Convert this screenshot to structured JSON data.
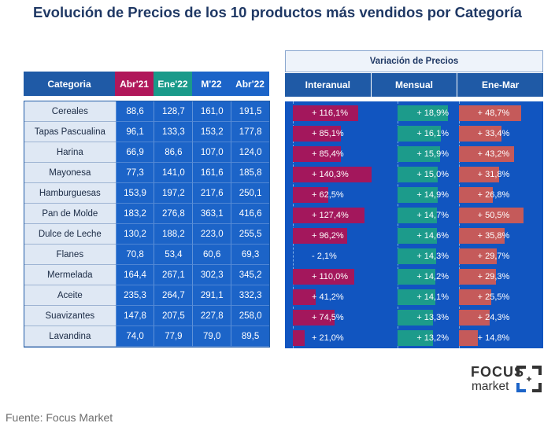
{
  "title": "Evolución de Precios de los 10 productos más vendidos por Categoría",
  "table": {
    "headers": [
      "Categoria",
      "Abr'21",
      "Ene'22",
      "M'22",
      "Abr'22"
    ],
    "rows": [
      [
        "Cereales",
        "88,6",
        "128,7",
        "161,0",
        "191,5"
      ],
      [
        "Tapas Pascualina",
        "96,1",
        "133,3",
        "153,2",
        "177,8"
      ],
      [
        "Harina",
        "66,9",
        "86,6",
        "107,0",
        "124,0"
      ],
      [
        "Mayonesa",
        "77,3",
        "141,0",
        "161,6",
        "185,8"
      ],
      [
        "Hamburguesas",
        "153,9",
        "197,2",
        "217,6",
        "250,1"
      ],
      [
        "Pan de Molde",
        "183,2",
        "276,8",
        "363,1",
        "416,6"
      ],
      [
        "Dulce de Leche",
        "130,2",
        "188,2",
        "223,0",
        "255,5"
      ],
      [
        "Flanes",
        "70,8",
        "53,4",
        "60,6",
        "69,3"
      ],
      [
        "Mermelada",
        "164,4",
        "267,1",
        "302,3",
        "345,2"
      ],
      [
        "Aceite",
        "235,3",
        "264,7",
        "291,1",
        "332,3"
      ],
      [
        "Suavizantes",
        "147,8",
        "207,5",
        "227,8",
        "258,0"
      ],
      [
        "Lavandina",
        "74,0",
        "77,9",
        "79,0",
        "89,5"
      ]
    ]
  },
  "colors": {
    "interanual": "#a3175c",
    "mensual": "#1c9b8b",
    "ene_mar": "#c55a5a",
    "panel_bg": "#1155c0"
  },
  "chart_data": {
    "type": "bar",
    "title": "Variación de Precios",
    "categories": [
      "Cereales",
      "Tapas Pascualina",
      "Harina",
      "Mayonesa",
      "Hamburguesas",
      "Pan de Molde",
      "Dulce de Leche",
      "Flanes",
      "Mermelada",
      "Aceite",
      "Suavizantes",
      "Lavandina"
    ],
    "series": [
      {
        "name": "Interanual",
        "values": [
          116.1,
          85.1,
          85.4,
          140.3,
          62.5,
          127.4,
          96.2,
          -2.1,
          110.0,
          41.2,
          74.5,
          21.0
        ],
        "labels": [
          "+ 116,1%",
          "+ 85,1%",
          "+ 85,4%",
          "+ 140,3%",
          "+ 62,5%",
          "+ 127,4%",
          "+ 96,2%",
          "- 2,1%",
          "+ 110,0%",
          "+ 41,2%",
          "+ 74,5%",
          "+ 21,0%"
        ]
      },
      {
        "name": "Mensual",
        "values": [
          18.9,
          16.1,
          15.9,
          15.0,
          14.9,
          14.7,
          14.6,
          14.3,
          14.2,
          14.1,
          13.3,
          13.2
        ],
        "labels": [
          "+ 18,9%",
          "+ 16,1%",
          "+ 15,9%",
          "+ 15,0%",
          "+ 14,9%",
          "+ 14,7%",
          "+ 14,6%",
          "+ 14,3%",
          "+ 14,2%",
          "+ 14,1%",
          "+ 13,3%",
          "+ 13,2%"
        ]
      },
      {
        "name": "Ene-Mar",
        "values": [
          48.7,
          33.4,
          43.2,
          31.8,
          26.8,
          50.5,
          35.8,
          29.7,
          29.3,
          25.5,
          24.3,
          14.8
        ],
        "labels": [
          "+ 48,7%",
          "+ 33,4%",
          "+ 43,2%",
          "+ 31,8%",
          "+ 26,8%",
          "+ 50,5%",
          "+ 35,8%",
          "+ 29,7%",
          "+ 29,3%",
          "+ 25,5%",
          "+ 24,3%",
          "+ 14,8%"
        ]
      }
    ],
    "xlabel": "",
    "ylabel": ""
  },
  "logo": {
    "line1": "FOCUS",
    "line2": "market"
  },
  "source": "Fuente: Focus Market"
}
